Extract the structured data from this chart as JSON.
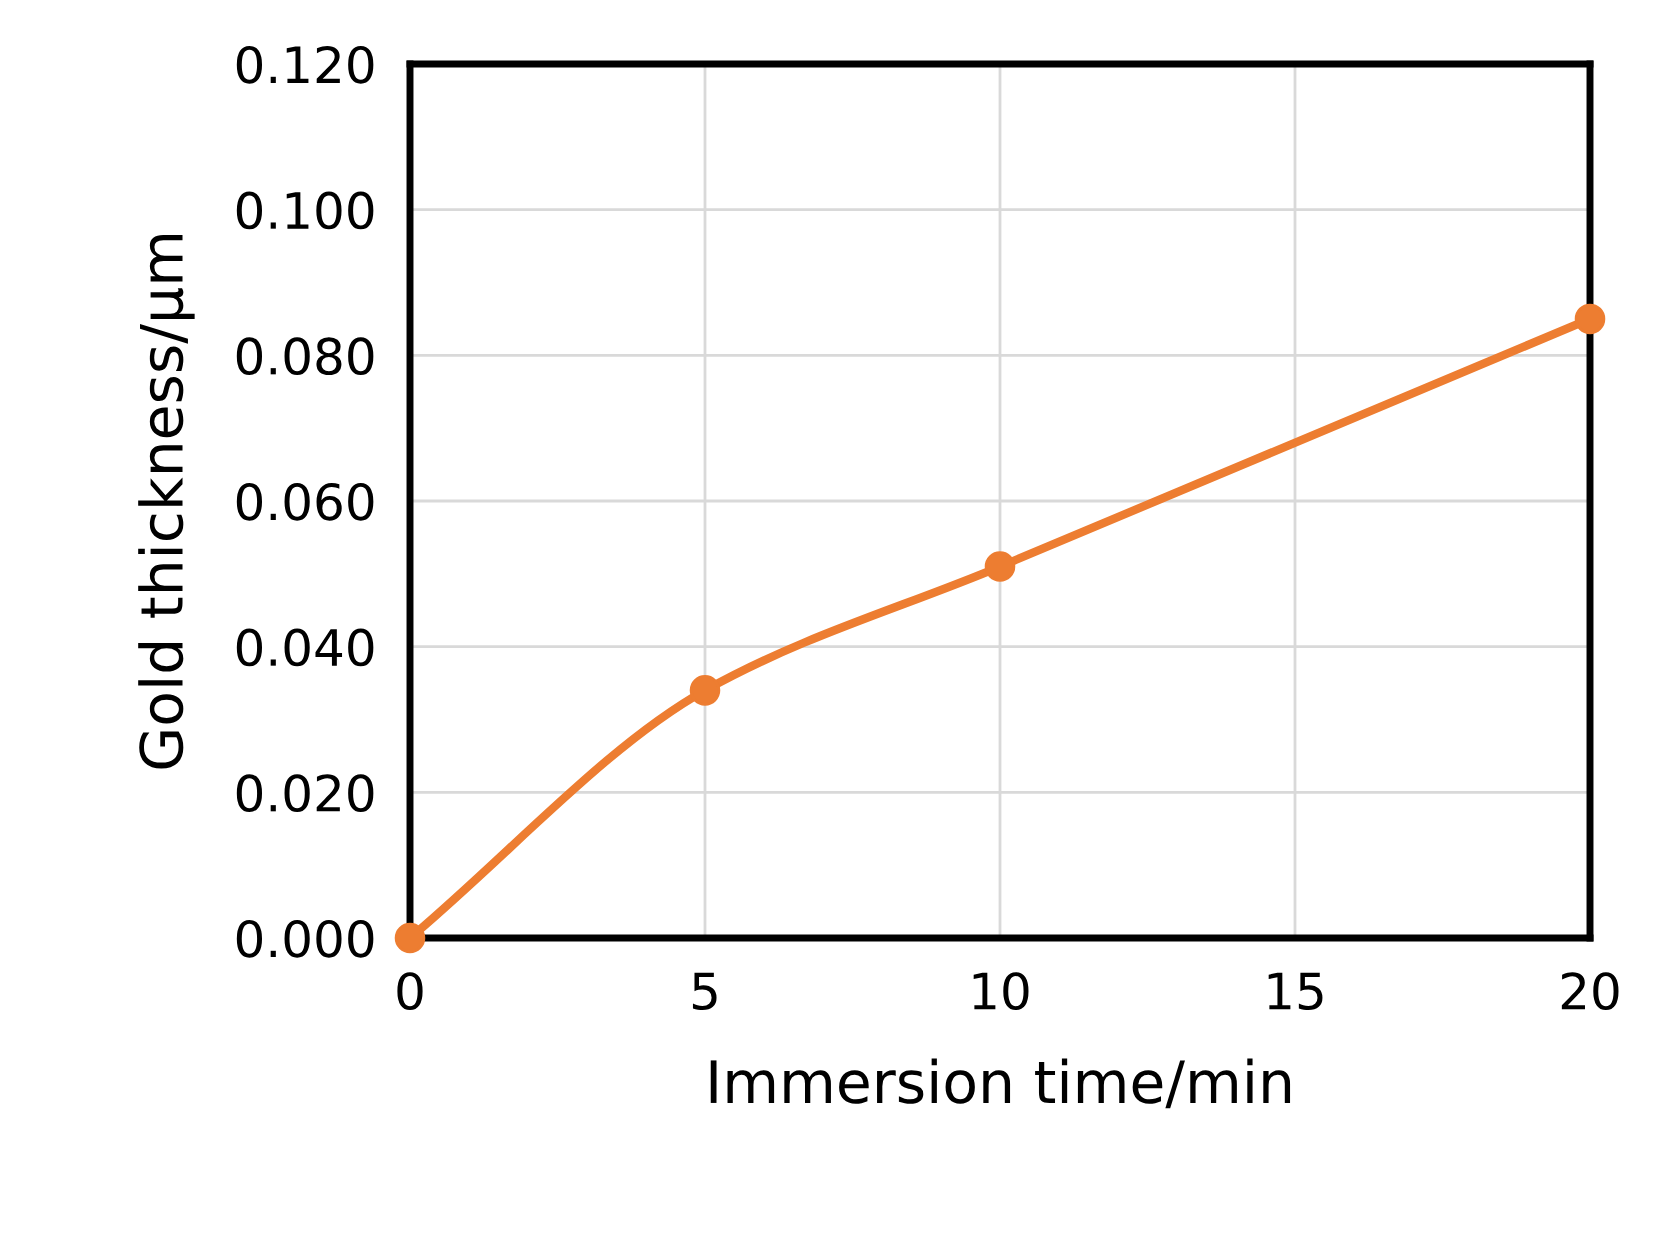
{
  "chart_data": {
    "type": "line",
    "xlabel": "Immersion time/min",
    "ylabel": "Gold thickness/µm",
    "series": [
      {
        "color": "#ed7d31",
        "x": [
          0,
          5,
          10,
          20
        ],
        "values": [
          0.0,
          0.034,
          0.051,
          0.085
        ]
      }
    ],
    "xlim": [
      0,
      20
    ],
    "xticks": [
      0,
      5,
      10,
      15,
      20
    ],
    "ylim": [
      0,
      0.12
    ],
    "yticks": [
      {
        "value": 0,
        "label": "0.000"
      },
      {
        "value": 0.02,
        "label": "0.020"
      },
      {
        "value": 0.04,
        "label": "0.040"
      },
      {
        "value": 0.06,
        "label": "0.060"
      },
      {
        "value": 0.08,
        "label": "0.080"
      },
      {
        "value": 0.1,
        "label": "0.100"
      },
      {
        "value": 0.12,
        "label": "0.120"
      }
    ],
    "grid": true,
    "marker": "circle",
    "line_style": "solid"
  }
}
